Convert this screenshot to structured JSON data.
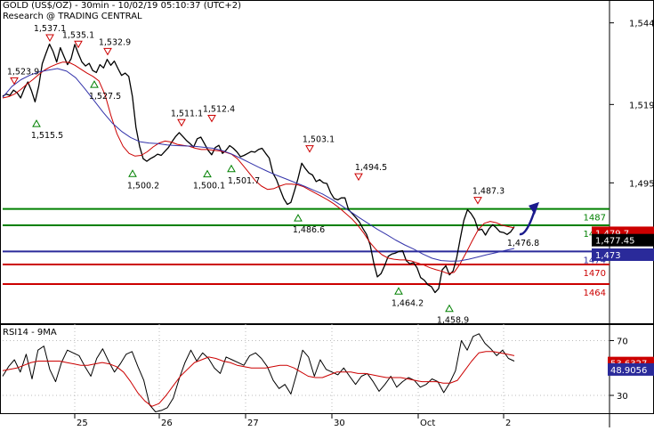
{
  "header": {
    "title": "GOLD (US$/OZ) - 30min - 10/02/19 05:10:37 (UTC+2)",
    "source": "Research @ TRADING CENTRAL"
  },
  "rsi_panel": {
    "label": "RSI14 - 9MA"
  },
  "colors": {
    "price": "#000000",
    "ma_fast": "#cc0000",
    "ma_slow": "#3333aa",
    "support_green": "#008000",
    "level_blue": "#2a2a9a",
    "resist_red": "#cc0000",
    "arrow": "#1a1a8c",
    "badge_red": "#cc0000",
    "badge_blue": "#2a2aaa",
    "badge_black": "#000000",
    "grid": "#bbbbbb",
    "peak_marker": "#cc0000",
    "trough_marker": "#008000"
  },
  "chart_data": [
    {
      "type": "line",
      "title": "GOLD (US$/OZ) - 30min",
      "ylim": [
        1452,
        1551
      ],
      "x_ticks": [
        "25",
        "26",
        "27",
        "30",
        "Oct",
        "2"
      ],
      "y_ticks": [
        1544,
        1519,
        1495
      ],
      "y_tick_labels": [
        "1,544",
        "1,519",
        "1,495"
      ],
      "series": [
        {
          "key": "price",
          "values": [
            1521.5,
            1522.2,
            1521.8,
            1523.4,
            1522.6,
            1521.0,
            1523.8,
            1525.9,
            1523.2,
            1519.8,
            1524.6,
            1531.5,
            1534.6,
            1537.5,
            1535.2,
            1532.0,
            1536.4,
            1533.8,
            1531.2,
            1533.0,
            1537.4,
            1534.6,
            1532.0,
            1530.8,
            1531.6,
            1529.4,
            1528.8,
            1531.2,
            1530.2,
            1532.8,
            1531.0,
            1532.3,
            1530.0,
            1527.9,
            1528.6,
            1527.6,
            1521.5,
            1512.0,
            1506.2,
            1502.4,
            1501.6,
            1502.4,
            1503.0,
            1503.8,
            1503.4,
            1504.6,
            1505.8,
            1507.6,
            1509.2,
            1510.4,
            1509.2,
            1508.0,
            1507.0,
            1506.0,
            1508.5,
            1509.0,
            1507.0,
            1505.0,
            1503.6,
            1505.8,
            1506.5,
            1504.0,
            1505.0,
            1506.4,
            1505.6,
            1504.5,
            1503.0,
            1503.4,
            1504.0,
            1504.6,
            1504.4,
            1505.2,
            1505.6,
            1504.0,
            1502.6,
            1498.0,
            1496.0,
            1493.0,
            1490.2,
            1488.4,
            1489.0,
            1492.6,
            1496.4,
            1501.0,
            1499.4,
            1498.0,
            1497.4,
            1495.4,
            1496.0,
            1495.0,
            1494.8,
            1492.0,
            1490.2,
            1489.8,
            1490.4,
            1490.4,
            1486.8,
            1485.6,
            1484.4,
            1483.0,
            1481.0,
            1479.2,
            1476.0,
            1470.4,
            1466.2,
            1467.2,
            1469.6,
            1472.5,
            1473.2,
            1473.5,
            1474.0,
            1474.2,
            1471.2,
            1470.2,
            1470.6,
            1469.0,
            1466.0,
            1465.2,
            1463.8,
            1463.2,
            1461.4,
            1462.6,
            1468.4,
            1469.6,
            1466.8,
            1468.0,
            1472.0,
            1478.0,
            1483.5,
            1486.8,
            1485.6,
            1483.8,
            1480.5,
            1480.8,
            1479.0,
            1481.0,
            1482.2,
            1481.2,
            1480.0,
            1479.8,
            1479.2,
            1480.0,
            1481.6
          ]
        },
        {
          "key": "ma_fast",
          "values": [
            1521.0,
            1521.4,
            1522.2,
            1523.6,
            1525.2,
            1526.6,
            1528.2,
            1529.6,
            1530.6,
            1531.4,
            1532.0,
            1531.9,
            1531.0,
            1529.8,
            1528.6,
            1527.6,
            1526.2,
            1522.0,
            1515.5,
            1510.0,
            1506.2,
            1504.0,
            1503.2,
            1503.4,
            1504.5,
            1506.0,
            1507.2,
            1507.8,
            1507.5,
            1506.8,
            1506.5,
            1506.2,
            1505.6,
            1505.2,
            1505.2,
            1505.0,
            1504.8,
            1504.4,
            1503.8,
            1502.4,
            1500.2,
            1497.9,
            1495.6,
            1494.0,
            1493.0,
            1493.2,
            1494.0,
            1494.6,
            1494.6,
            1494.4,
            1493.8,
            1492.8,
            1491.8,
            1490.8,
            1489.8,
            1488.6,
            1487.2,
            1485.6,
            1484.0,
            1482.0,
            1479.6,
            1476.8,
            1474.6,
            1473.0,
            1472.0,
            1471.6,
            1471.4,
            1471.4,
            1471.0,
            1470.4,
            1469.8,
            1469.0,
            1468.4,
            1467.9,
            1467.2,
            1467.6,
            1470.2,
            1473.6,
            1477.2,
            1480.6,
            1482.6,
            1483.2,
            1482.8,
            1482.0,
            1481.6,
            1481.2
          ]
        },
        {
          "key": "ma_slow",
          "values": [
            1521.2,
            1524.5,
            1526.6,
            1528.0,
            1529.0,
            1529.5,
            1530.0,
            1529.2,
            1527.2,
            1523.8,
            1520.2,
            1516.6,
            1513.3,
            1510.8,
            1508.9,
            1507.6,
            1507.2,
            1507.0,
            1506.6,
            1506.4,
            1506.3,
            1506.2,
            1505.9,
            1505.6,
            1504.9,
            1503.9,
            1502.6,
            1501.2,
            1499.8,
            1498.5,
            1497.3,
            1496.2,
            1495.1,
            1494.0,
            1492.8,
            1491.6,
            1490.0,
            1488.2,
            1486.3,
            1484.4,
            1482.6,
            1480.8,
            1479.2,
            1477.5,
            1476.0,
            1474.7,
            1473.2,
            1471.9,
            1471.2,
            1471.0,
            1471.1,
            1471.6,
            1472.3,
            1473.0,
            1473.6,
            1474.3,
            1474.9
          ]
        }
      ],
      "horizontal_lines": [
        {
          "value": 1487,
          "color": "green",
          "label": "1487"
        },
        {
          "value": 1482,
          "color": "green",
          "label": "1482"
        },
        {
          "value": 1474,
          "color": "blue",
          "label": "1474"
        },
        {
          "value": 1470,
          "color": "red",
          "label": "1470"
        },
        {
          "value": 1464,
          "color": "red",
          "label": "1464"
        }
      ],
      "peaks": [
        {
          "value": 1523.9,
          "label": "1,523.9"
        },
        {
          "value": 1537.1,
          "label": "1,537.1"
        },
        {
          "value": 1535.1,
          "label": "1,535.1"
        },
        {
          "value": 1532.9,
          "label": "1,532.9"
        },
        {
          "value": 1511.1,
          "label": "1,511.1"
        },
        {
          "value": 1512.4,
          "label": "1,512.4"
        },
        {
          "value": 1503.1,
          "label": "1,503.1"
        },
        {
          "value": 1494.5,
          "label": "1,494.5"
        },
        {
          "value": 1487.3,
          "label": "1,487.3"
        }
      ],
      "troughs": [
        {
          "value": 1515.5,
          "label": "1,515.5"
        },
        {
          "value": 1527.5,
          "label": "1,527.5"
        },
        {
          "value": 1500.2,
          "label": "1,500.2"
        },
        {
          "value": 1500.1,
          "label": "1,500.1"
        },
        {
          "value": 1501.7,
          "label": "1,501.7"
        },
        {
          "value": 1486.6,
          "label": "1,486.6"
        },
        {
          "value": 1464.2,
          "label": "1,464.2"
        },
        {
          "value": 1458.9,
          "label": "1,458.9"
        }
      ],
      "annotations": [
        {
          "value": 1476.8,
          "label": "1,476.8"
        }
      ],
      "badges": [
        {
          "value": 1479.7,
          "label": "1,479.7",
          "color": "red"
        },
        {
          "value": 1477.45,
          "label": "1,477.45",
          "color": "black"
        },
        {
          "value": 1473,
          "label": "1,473",
          "color": "blue"
        }
      ],
      "forecast_arrow": {
        "from": 1479.3,
        "to": 1487.5
      }
    },
    {
      "type": "line",
      "title": "RSI14 - 9MA",
      "ylim": [
        17,
        82
      ],
      "y_ticks": [
        70,
        30
      ],
      "series": [
        {
          "key": "rsi",
          "values": [
            44,
            51,
            56,
            47,
            60,
            42,
            63,
            66,
            49,
            40,
            54,
            63,
            61,
            59,
            51,
            44,
            57,
            64,
            55,
            47,
            53,
            60,
            62,
            51,
            41,
            23,
            18,
            19,
            21,
            28,
            42,
            54,
            63,
            55,
            61,
            57,
            50,
            46,
            58,
            56,
            54,
            52,
            59,
            61,
            57,
            51,
            41,
            35,
            38,
            31,
            46,
            63,
            58,
            44,
            56,
            49,
            47,
            45,
            50,
            44,
            38,
            44,
            46,
            40,
            33,
            38,
            44,
            36,
            40,
            43,
            41,
            36,
            38,
            42,
            40,
            32,
            39,
            48,
            70,
            63,
            73,
            75,
            68,
            64,
            59,
            63,
            57,
            55
          ]
        },
        {
          "key": "rsi_ma",
          "values": [
            48,
            49,
            50,
            52,
            54,
            55,
            55,
            55,
            55,
            54,
            53,
            52,
            52,
            53,
            54,
            53,
            51,
            47,
            40,
            32,
            26,
            22,
            24,
            30,
            37,
            44,
            49,
            54,
            56,
            58,
            57,
            55,
            54,
            52,
            51,
            50,
            50,
            50,
            51,
            52,
            52,
            50,
            47,
            44,
            43,
            43,
            45,
            47,
            47,
            47,
            46,
            46,
            45,
            44,
            43,
            43,
            43,
            42,
            41,
            40,
            40,
            40,
            39,
            39,
            41,
            48,
            55,
            61,
            62,
            62,
            61,
            60,
            59
          ]
        }
      ],
      "badges": [
        {
          "value": 53.6327,
          "label": "53.6327",
          "color": "red"
        },
        {
          "value": 48.9056,
          "label": "48.9056",
          "color": "blue"
        }
      ]
    }
  ]
}
